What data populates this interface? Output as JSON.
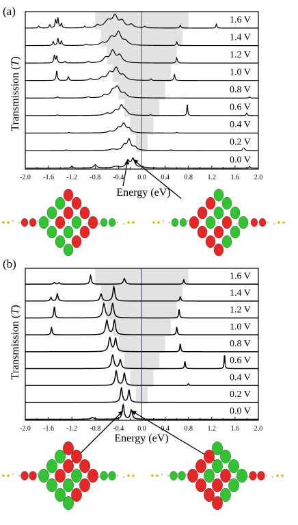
{
  "chart_data": [
    {
      "type": "line",
      "panel_label": "(a)",
      "xlabel": "Energy (eV)",
      "ylabel_main": "Transmission (",
      "ylabel_var": "T",
      "ylabel_end": ")",
      "xlim": [
        -2.0,
        2.0
      ],
      "x_ticks": [
        -2.0,
        -1.8,
        -1.6,
        -1.4,
        -1.2,
        -1.0,
        -0.8,
        -0.6,
        -0.4,
        -0.2,
        0.0,
        0.2,
        0.4,
        0.6,
        0.8,
        1.0,
        1.2,
        1.4,
        1.6,
        1.8,
        2.0
      ],
      "x_tick_labels": [
        "-2.0",
        "-1.6",
        "-1.2",
        "-0.8",
        "-0.4",
        "0.0",
        "0.4",
        "0.8",
        "1.2",
        "1.6",
        "2.0"
      ],
      "x_tick_label_values": [
        -2.0,
        -1.6,
        -1.2,
        -0.8,
        -0.4,
        0.0,
        0.4,
        0.8,
        1.2,
        1.6,
        2.0
      ],
      "bias_window_color": "#e2e2e2",
      "fermi_line_color": "#555555",
      "series": [
        {
          "name": "1.6 V",
          "bias": 1.6,
          "baseline": 0.0,
          "bias_window": [
            -0.8,
            0.8
          ],
          "peaks": [
            [
              -1.77,
              0.15,
              0.015
            ],
            [
              -1.58,
              0.25,
              0.012
            ],
            [
              -1.48,
              0.6,
              0.012
            ],
            [
              -1.44,
              0.75,
              0.012
            ],
            [
              -1.38,
              0.35,
              0.012
            ],
            [
              -0.98,
              0.12,
              0.015
            ],
            [
              -0.76,
              0.2,
              0.03
            ],
            [
              -0.58,
              0.55,
              0.07
            ],
            [
              -0.46,
              0.85,
              0.05
            ],
            [
              -0.34,
              0.5,
              0.05
            ],
            [
              -0.18,
              0.25,
              0.04
            ],
            [
              0.05,
              0.12,
              0.02
            ],
            [
              0.66,
              0.22,
              0.012
            ],
            [
              1.28,
              0.3,
              0.01
            ]
          ]
        },
        {
          "name": "1.4 V",
          "bias": 1.4,
          "baseline": 0.0,
          "bias_window": [
            -0.7,
            0.7
          ],
          "peaks": [
            [
              -1.52,
              0.3,
              0.012
            ],
            [
              -1.44,
              0.55,
              0.012
            ],
            [
              -1.38,
              0.35,
              0.012
            ],
            [
              -0.95,
              0.1,
              0.02
            ],
            [
              -0.68,
              0.18,
              0.04
            ],
            [
              -0.52,
              0.6,
              0.06
            ],
            [
              -0.4,
              0.95,
              0.05
            ],
            [
              -0.28,
              0.3,
              0.05
            ],
            [
              0.6,
              0.28,
              0.012
            ]
          ]
        },
        {
          "name": "1.2 V",
          "bias": 1.2,
          "baseline": 0.0,
          "bias_window": [
            -0.6,
            0.6
          ],
          "peaks": [
            [
              -1.5,
              0.6,
              0.012
            ],
            [
              -1.46,
              0.5,
              0.012
            ],
            [
              -1.32,
              0.12,
              0.015
            ],
            [
              -0.92,
              0.12,
              0.02
            ],
            [
              -0.62,
              0.35,
              0.05
            ],
            [
              -0.5,
              0.9,
              0.05
            ],
            [
              -0.38,
              0.55,
              0.05
            ],
            [
              0.6,
              0.4,
              0.012
            ]
          ]
        },
        {
          "name": "1.0 V",
          "bias": 1.0,
          "baseline": 0.0,
          "bias_window": [
            -0.5,
            0.5
          ],
          "peaks": [
            [
              -1.46,
              0.75,
              0.012
            ],
            [
              -1.26,
              0.3,
              0.012
            ],
            [
              -0.88,
              0.12,
              0.03
            ],
            [
              -0.68,
              0.2,
              0.04
            ],
            [
              -0.55,
              0.55,
              0.05
            ],
            [
              -0.44,
              0.9,
              0.05
            ],
            [
              -0.32,
              0.35,
              0.05
            ],
            [
              0.16,
              0.12,
              0.012
            ],
            [
              0.56,
              0.45,
              0.012
            ]
          ]
        },
        {
          "name": "0.8 V",
          "bias": 0.8,
          "baseline": 0.0,
          "bias_window": [
            -0.4,
            0.4
          ],
          "peaks": [
            [
              -1.45,
              0.08,
              0.015
            ],
            [
              -0.92,
              0.08,
              0.03
            ],
            [
              -0.64,
              0.2,
              0.04
            ],
            [
              -0.5,
              0.5,
              0.05
            ],
            [
              -0.42,
              0.75,
              0.05
            ],
            [
              -0.3,
              0.3,
              0.05
            ],
            [
              1.85,
              0.08,
              0.012
            ]
          ]
        },
        {
          "name": "0.6 V",
          "bias": 0.6,
          "baseline": 0.0,
          "bias_window": [
            -0.3,
            0.3
          ],
          "peaks": [
            [
              -1.45,
              0.05,
              0.015
            ],
            [
              -0.6,
              0.15,
              0.05
            ],
            [
              -0.45,
              0.35,
              0.05
            ],
            [
              -0.35,
              0.7,
              0.04
            ],
            [
              -0.28,
              0.3,
              0.04
            ],
            [
              0.15,
              0.06,
              0.015
            ],
            [
              0.78,
              0.9,
              0.008
            ],
            [
              1.8,
              0.2,
              0.01
            ]
          ]
        },
        {
          "name": "0.4 V",
          "bias": 0.4,
          "baseline": 0.0,
          "bias_window": [
            -0.2,
            0.2
          ],
          "peaks": [
            [
              -1.25,
              0.05,
              0.015
            ],
            [
              -0.55,
              0.1,
              0.05
            ],
            [
              -0.4,
              0.35,
              0.05
            ],
            [
              -0.31,
              0.65,
              0.04
            ],
            [
              -0.22,
              0.3,
              0.04
            ],
            [
              0.6,
              0.05,
              0.015
            ]
          ]
        },
        {
          "name": "0.2 V",
          "bias": 0.2,
          "baseline": 0.0,
          "bias_window": [
            -0.1,
            0.1
          ],
          "peaks": [
            [
              -1.3,
              0.05,
              0.015
            ],
            [
              -0.5,
              0.1,
              0.05
            ],
            [
              -0.3,
              0.4,
              0.04
            ],
            [
              -0.22,
              0.8,
              0.035
            ],
            [
              -0.12,
              0.25,
              0.04
            ],
            [
              0.5,
              0.05,
              0.015
            ],
            [
              1.75,
              0.35,
              0.012
            ]
          ]
        },
        {
          "name": "0.0 V",
          "bias": 0.0,
          "baseline": 0.0,
          "bias_window": [
            0.0,
            0.0
          ],
          "peaks": [
            [
              -1.2,
              0.15,
              0.015
            ],
            [
              -0.8,
              0.25,
              0.03
            ],
            [
              -0.45,
              0.12,
              0.05
            ],
            [
              -0.24,
              0.55,
              0.035
            ],
            [
              -0.15,
              0.7,
              0.035
            ],
            [
              0.0,
              0.1,
              0.04
            ],
            [
              1.85,
              0.12,
              0.012
            ]
          ]
        }
      ],
      "orbital_arrows_to": [
        -0.24,
        -0.15
      ]
    },
    {
      "type": "line",
      "panel_label": "(b)",
      "xlabel": "Energy (eV)",
      "ylabel_main": "Transmission (",
      "ylabel_var": "T",
      "ylabel_end": ")",
      "xlim": [
        -2.0,
        2.0
      ],
      "x_ticks": [
        -2.0,
        -1.8,
        -1.6,
        -1.4,
        -1.2,
        -1.0,
        -0.8,
        -0.6,
        -0.4,
        -0.2,
        0.0,
        0.2,
        0.4,
        0.6,
        0.8,
        1.0,
        1.2,
        1.4,
        1.6,
        1.8,
        2.0
      ],
      "x_tick_labels": [
        "-2.0",
        "-1.6",
        "-1.2",
        "-0.8",
        "-0.4",
        "0.0",
        "0.4",
        "0.8",
        "1.2",
        "1.6",
        "2.0"
      ],
      "x_tick_label_values": [
        -2.0,
        -1.6,
        -1.2,
        -0.8,
        -0.4,
        0.0,
        0.4,
        0.8,
        1.2,
        1.6,
        2.0
      ],
      "bias_window_color": "#e2e2e2",
      "fermi_line_color": "#3a3a8c",
      "series": [
        {
          "name": "1.6 V",
          "bias": 1.6,
          "baseline": 0.0,
          "bias_window": [
            -0.8,
            0.8
          ],
          "peaks": [
            [
              -1.5,
              0.12,
              0.015
            ],
            [
              -1.42,
              0.1,
              0.015
            ],
            [
              -0.88,
              0.6,
              0.015
            ],
            [
              -0.3,
              0.4,
              0.02
            ],
            [
              0.72,
              0.3,
              0.012
            ]
          ]
        },
        {
          "name": "1.4 V",
          "bias": 1.4,
          "baseline": 0.0,
          "bias_window": [
            -0.7,
            0.7
          ],
          "peaks": [
            [
              -1.56,
              0.25,
              0.015
            ],
            [
              -1.45,
              0.5,
              0.015
            ],
            [
              -0.7,
              0.5,
              0.02
            ],
            [
              -0.48,
              1.0,
              0.02
            ],
            [
              0.66,
              0.3,
              0.012
            ]
          ]
        },
        {
          "name": "1.2 V",
          "bias": 1.2,
          "baseline": 0.0,
          "bias_window": [
            -0.6,
            0.6
          ],
          "peaks": [
            [
              -1.5,
              0.8,
              0.012
            ],
            [
              -0.65,
              1.0,
              0.025
            ],
            [
              -0.5,
              1.0,
              0.022
            ],
            [
              0.64,
              0.6,
              0.01
            ]
          ]
        },
        {
          "name": "1.0 V",
          "bias": 1.0,
          "baseline": 0.0,
          "bias_window": [
            -0.5,
            0.5
          ],
          "peaks": [
            [
              -1.55,
              0.5,
              0.012
            ],
            [
              -0.6,
              1.0,
              0.025
            ],
            [
              -0.47,
              1.0,
              0.022
            ],
            [
              0.6,
              0.55,
              0.01
            ]
          ]
        },
        {
          "name": "0.8 V",
          "bias": 0.8,
          "baseline": 0.0,
          "bias_window": [
            -0.4,
            0.4
          ],
          "peaks": [
            [
              -0.55,
              0.95,
              0.025
            ],
            [
              -0.45,
              0.9,
              0.022
            ],
            [
              0.66,
              0.55,
              0.01
            ]
          ]
        },
        {
          "name": "0.6 V",
          "bias": 0.6,
          "baseline": 0.0,
          "bias_window": [
            -0.3,
            0.3
          ],
          "peaks": [
            [
              -0.5,
              0.95,
              0.025
            ],
            [
              -0.37,
              0.6,
              0.02
            ],
            [
              0.74,
              0.5,
              0.01
            ],
            [
              1.42,
              1.0,
              0.008
            ]
          ]
        },
        {
          "name": "0.4 V",
          "bias": 0.4,
          "baseline": 0.0,
          "bias_window": [
            -0.2,
            0.2
          ],
          "peaks": [
            [
              -0.44,
              1.0,
              0.022
            ],
            [
              -0.3,
              0.85,
              0.02
            ],
            [
              0.8,
              0.12,
              0.01
            ]
          ]
        },
        {
          "name": "0.2 V",
          "bias": 0.2,
          "baseline": 0.0,
          "bias_window": [
            -0.1,
            0.1
          ],
          "peaks": [
            [
              -0.35,
              1.0,
              0.02
            ],
            [
              -0.22,
              0.85,
              0.018
            ]
          ]
        },
        {
          "name": "0.0 V",
          "bias": 0.0,
          "baseline": 0.0,
          "bias_window": [
            0.0,
            0.0
          ],
          "peaks": [
            [
              -0.85,
              0.12,
              0.03
            ],
            [
              -0.32,
              1.0,
              0.02
            ],
            [
              -0.18,
              0.65,
              0.02
            ]
          ]
        }
      ],
      "orbital_arrows_to": [
        -0.32,
        -0.18
      ]
    }
  ],
  "colors": {
    "orbital_positive": "#e51c1c",
    "orbital_negative": "#28c028",
    "atom_small": "#d8b400"
  }
}
